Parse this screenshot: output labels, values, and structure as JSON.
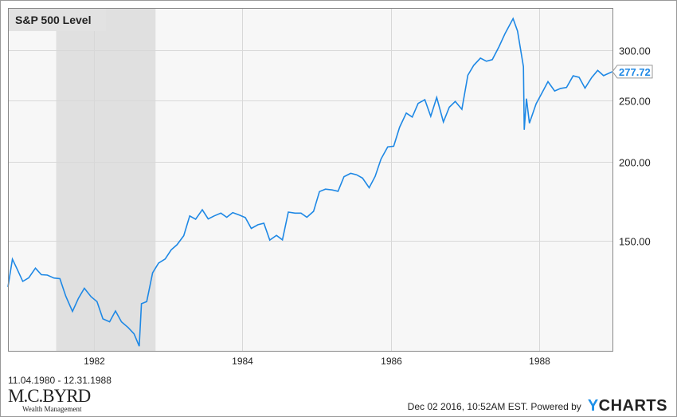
{
  "chart_data": {
    "type": "line",
    "title": "S&P 500 Level",
    "yscale": "log",
    "ylim": [
      100.7,
      350
    ],
    "xlim": [
      1980.84,
      1988.99
    ],
    "yticks": [
      150,
      200,
      250,
      300
    ],
    "ytick_labels": [
      "150.00",
      "200.00",
      "250.00",
      "300.00"
    ],
    "xticks": [
      1982,
      1984,
      1986,
      1988
    ],
    "xtick_labels": [
      "1982",
      "1984",
      "1986",
      "1988"
    ],
    "grid": true,
    "recession": [
      1981.49,
      1982.83
    ],
    "last_value_label": "277.72",
    "series": [
      {
        "name": "S&P 500 Level",
        "color": "#1e88e5",
        "points": [
          [
            1980.84,
            127
          ],
          [
            1980.9,
            140.5
          ],
          [
            1980.96,
            135.8
          ],
          [
            1981.04,
            129.6
          ],
          [
            1981.12,
            131.3
          ],
          [
            1981.21,
            136.0
          ],
          [
            1981.29,
            132.8
          ],
          [
            1981.37,
            132.6
          ],
          [
            1981.46,
            131.2
          ],
          [
            1981.54,
            130.9
          ],
          [
            1981.62,
            122.8
          ],
          [
            1981.71,
            116.2
          ],
          [
            1981.79,
            121.9
          ],
          [
            1981.87,
            126.4
          ],
          [
            1981.96,
            122.6
          ],
          [
            1982.04,
            120.4
          ],
          [
            1982.12,
            113.1
          ],
          [
            1982.21,
            111.9
          ],
          [
            1982.29,
            116.4
          ],
          [
            1982.37,
            111.9
          ],
          [
            1982.46,
            109.6
          ],
          [
            1982.54,
            107.1
          ],
          [
            1982.61,
            102.4
          ],
          [
            1982.64,
            119.5
          ],
          [
            1982.71,
            120.4
          ],
          [
            1982.79,
            133.7
          ],
          [
            1982.87,
            138.5
          ],
          [
            1982.96,
            140.6
          ],
          [
            1983.04,
            145.3
          ],
          [
            1983.12,
            148.1
          ],
          [
            1983.21,
            153.0
          ],
          [
            1983.29,
            164.4
          ],
          [
            1983.37,
            162.4
          ],
          [
            1983.46,
            168.1
          ],
          [
            1983.54,
            162.6
          ],
          [
            1983.62,
            164.4
          ],
          [
            1983.71,
            166.1
          ],
          [
            1983.79,
            163.6
          ],
          [
            1983.87,
            166.4
          ],
          [
            1983.96,
            164.9
          ],
          [
            1984.04,
            163.4
          ],
          [
            1984.12,
            157.1
          ],
          [
            1984.21,
            159.2
          ],
          [
            1984.29,
            160.1
          ],
          [
            1984.37,
            150.6
          ],
          [
            1984.46,
            153.2
          ],
          [
            1984.54,
            150.7
          ],
          [
            1984.62,
            166.7
          ],
          [
            1984.71,
            166.1
          ],
          [
            1984.79,
            166.1
          ],
          [
            1984.87,
            163.6
          ],
          [
            1984.96,
            167.2
          ],
          [
            1985.04,
            179.6
          ],
          [
            1985.12,
            181.2
          ],
          [
            1985.21,
            180.7
          ],
          [
            1985.29,
            179.8
          ],
          [
            1985.37,
            189.6
          ],
          [
            1985.46,
            191.9
          ],
          [
            1985.54,
            190.9
          ],
          [
            1985.62,
            188.6
          ],
          [
            1985.71,
            182.1
          ],
          [
            1985.79,
            189.8
          ],
          [
            1985.87,
            202.2
          ],
          [
            1985.96,
            211.3
          ],
          [
            1986.04,
            211.8
          ],
          [
            1986.12,
            226.9
          ],
          [
            1986.21,
            238.9
          ],
          [
            1986.29,
            235.5
          ],
          [
            1986.37,
            247.4
          ],
          [
            1986.46,
            250.8
          ],
          [
            1986.54,
            236.1
          ],
          [
            1986.62,
            252.9
          ],
          [
            1986.71,
            231.3
          ],
          [
            1986.79,
            244.0
          ],
          [
            1986.87,
            249.2
          ],
          [
            1986.96,
            242.2
          ],
          [
            1987.04,
            274.1
          ],
          [
            1987.12,
            284.2
          ],
          [
            1987.21,
            291.7
          ],
          [
            1987.29,
            288.4
          ],
          [
            1987.37,
            290.1
          ],
          [
            1987.46,
            304.0
          ],
          [
            1987.54,
            318.7
          ],
          [
            1987.65,
            336.8
          ],
          [
            1987.71,
            321.8
          ],
          [
            1987.79,
            282.7
          ],
          [
            1987.8,
            224.8
          ],
          [
            1987.83,
            251.8
          ],
          [
            1987.87,
            230.3
          ],
          [
            1987.96,
            247.1
          ],
          [
            1988.04,
            257.1
          ],
          [
            1988.12,
            267.8
          ],
          [
            1988.21,
            258.9
          ],
          [
            1988.29,
            261.3
          ],
          [
            1988.37,
            262.2
          ],
          [
            1988.46,
            273.5
          ],
          [
            1988.54,
            272.0
          ],
          [
            1988.62,
            261.5
          ],
          [
            1988.71,
            271.9
          ],
          [
            1988.79,
            279.0
          ],
          [
            1988.87,
            273.7
          ],
          [
            1988.99,
            277.72
          ]
        ]
      }
    ]
  },
  "footer": {
    "date_range": "11.04.1980 - 12.31.1988",
    "logo_main": "M.C.BYRD",
    "logo_sub": "Wealth Management",
    "timestamp": "Dec 02 2016, 10:52AM EST. Powered by",
    "brand_y": "Y",
    "brand_rest": "CHARTS"
  }
}
